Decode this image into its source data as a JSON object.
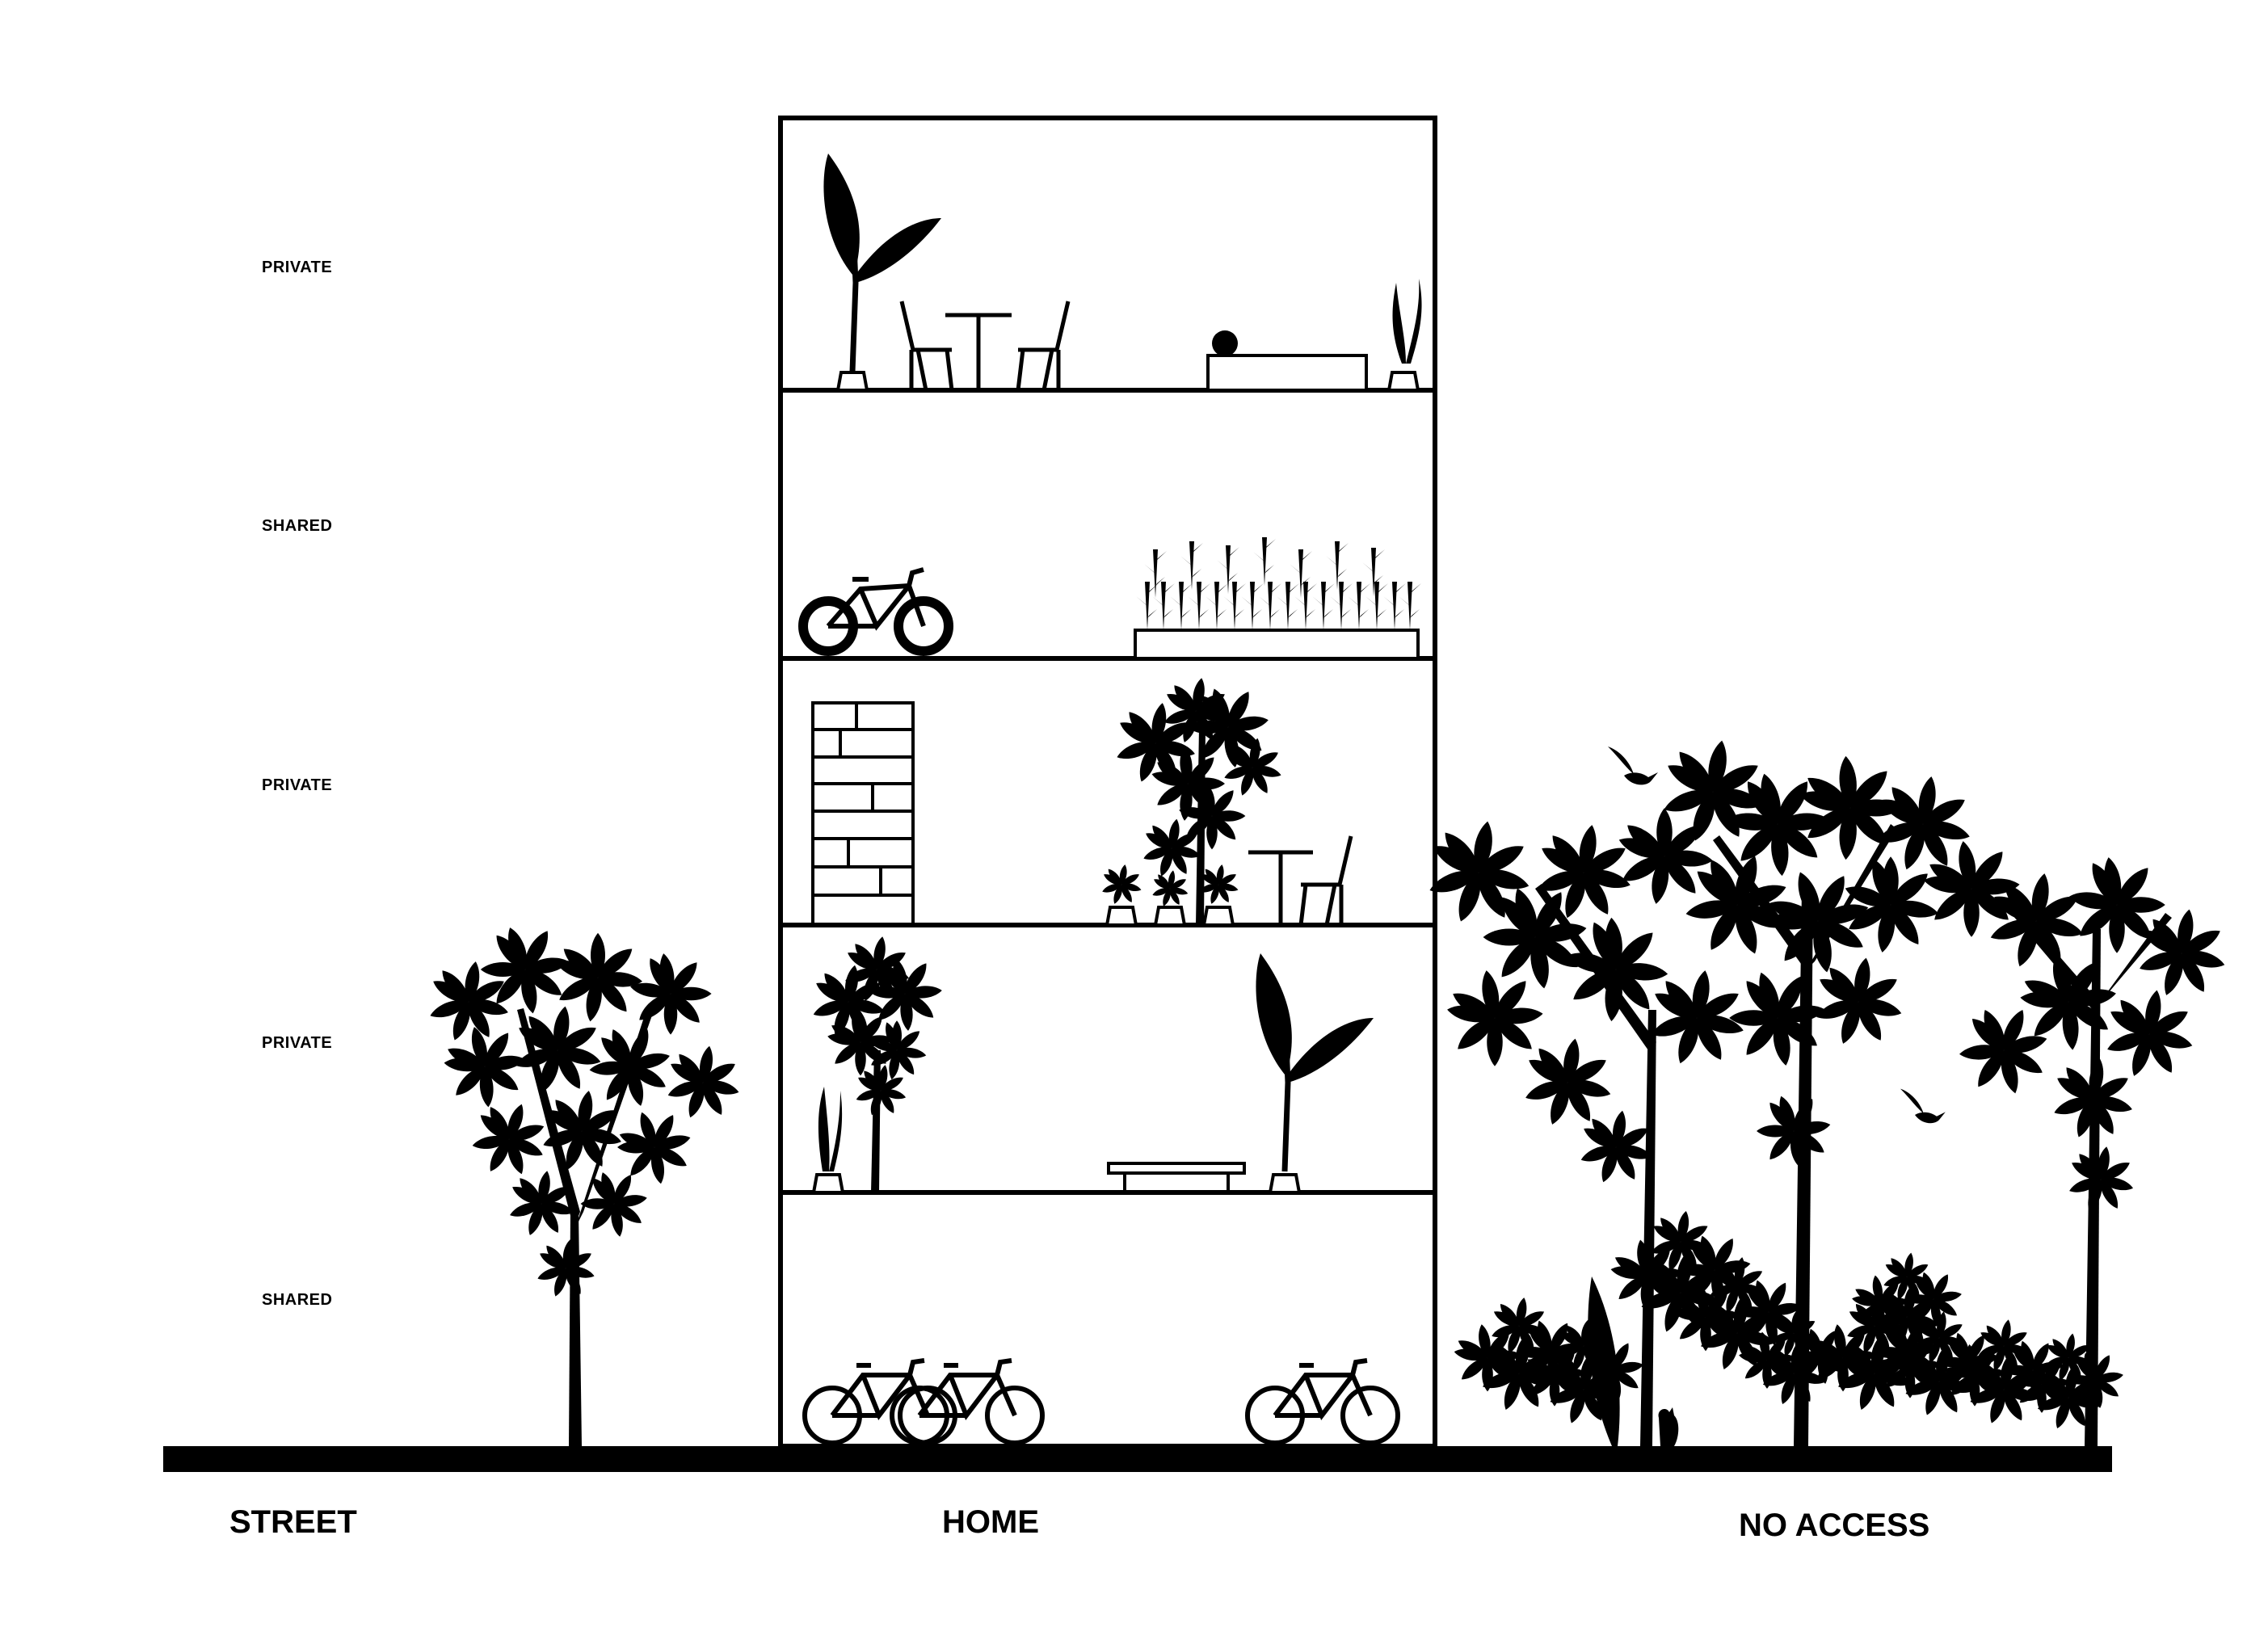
{
  "floor_labels": {
    "level_5": "PRIVATE",
    "level_4": "SHARED",
    "level_3": "PRIVATE",
    "level_2": "PRIVATE",
    "level_1": "SHARED"
  },
  "zone_labels": {
    "street": "STREET",
    "home": "HOME",
    "no_access": "NO ACCESS"
  },
  "colors": {
    "ink": "#000000",
    "paper": "#ffffff"
  }
}
